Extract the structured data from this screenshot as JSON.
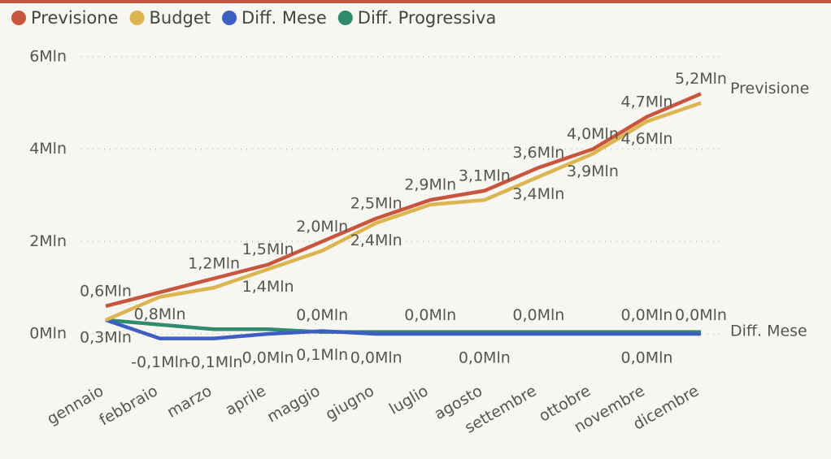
{
  "chart_data": {
    "type": "line",
    "categories": [
      "gennaio",
      "febbraio",
      "marzo",
      "aprile",
      "maggio",
      "giugno",
      "luglio",
      "agosto",
      "settembre",
      "ottobre",
      "novembre",
      "dicembre"
    ],
    "series": [
      {
        "name": "Previsione",
        "color": "#c8553d",
        "values": [
          0.6,
          0.9,
          1.2,
          1.5,
          2.0,
          2.5,
          2.9,
          3.1,
          3.6,
          4.0,
          4.7,
          5.2
        ],
        "value_labels": [
          "0,6Mln",
          null,
          "1,2Mln",
          "1,5Mln",
          "2,0Mln",
          "2,5Mln",
          "2,9Mln",
          "3,1Mln",
          "3,6Mln",
          "4,0Mln",
          "4,7Mln",
          "5,2Mln"
        ]
      },
      {
        "name": "Budget",
        "color": "#dcb550",
        "values": [
          0.3,
          0.8,
          1.0,
          1.4,
          1.8,
          2.4,
          2.8,
          2.9,
          3.4,
          3.9,
          4.6,
          5.0
        ],
        "value_labels": [
          "0,3Mln",
          "0,8Mln",
          null,
          "1,4Mln",
          null,
          "2,4Mln",
          null,
          null,
          "3,4Mln",
          "3,9Mln",
          "4,6Mln",
          null
        ]
      },
      {
        "name": "Diff. Mese",
        "color": "#3d5fc4",
        "values": [
          0.3,
          -0.1,
          -0.1,
          0.0,
          0.06,
          0.0,
          0.0,
          0.0,
          0.0,
          0.0,
          0.0,
          0.0
        ],
        "value_labels": [
          null,
          "-0,1Mln",
          "-0,1Mln",
          "0,0Mln",
          "0,1Mln",
          "0,0Mln",
          null,
          "0,0Mln",
          null,
          null,
          "0,0Mln",
          null
        ]
      },
      {
        "name": "Diff. Progressiva",
        "color": "#2e8b6e",
        "values": [
          0.3,
          0.2,
          0.1,
          0.1,
          0.04,
          0.04,
          0.04,
          0.04,
          0.04,
          0.04,
          0.04,
          0.04
        ],
        "value_labels": [
          null,
          null,
          null,
          null,
          "0,0Mln",
          null,
          "0,0Mln",
          null,
          "0,0Mln",
          null,
          "0,0Mln",
          "0,0Mln"
        ]
      }
    ],
    "ylim": [
      -0.3,
      6.2
    ],
    "yticks": [
      {
        "value": 0,
        "label": "0Mln"
      },
      {
        "value": 2,
        "label": "2Mln"
      },
      {
        "value": 4,
        "label": "4Mln"
      },
      {
        "value": 6,
        "label": "6Mln"
      }
    ],
    "grid": true,
    "legend": "top-left"
  }
}
